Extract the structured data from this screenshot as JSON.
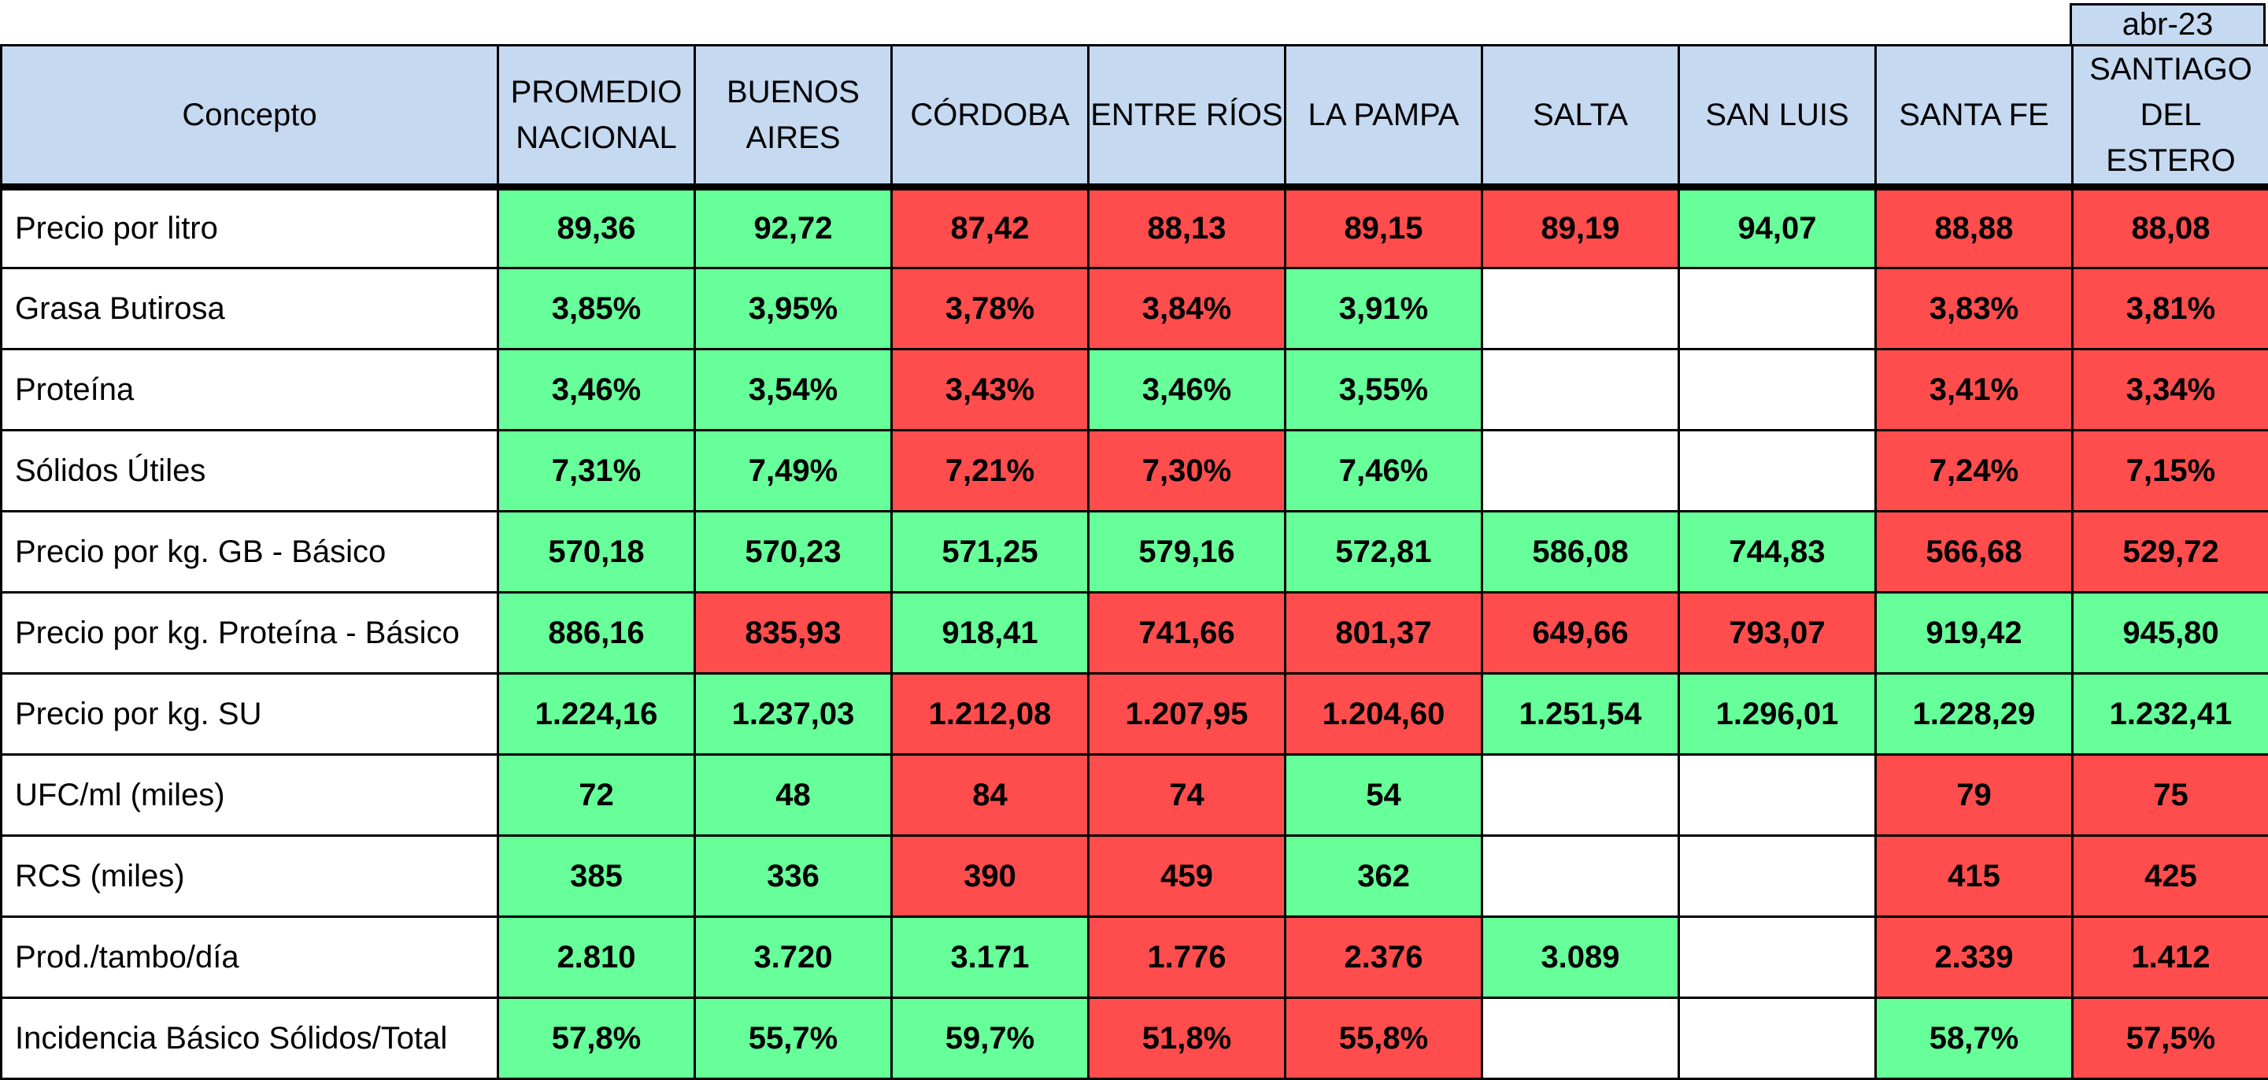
{
  "period": "abr-23",
  "colors": {
    "header": "#c5d9f1",
    "positive": "#66ff99",
    "negative": "#ff4d4d",
    "empty": "#ffffff"
  },
  "header": {
    "concept": "Concepto",
    "columns": [
      [
        "PROMEDIO",
        "NACIONAL"
      ],
      [
        "BUENOS",
        "AIRES"
      ],
      [
        "CÓRDOBA"
      ],
      [
        "ENTRE RÍOS"
      ],
      [
        "LA PAMPA"
      ],
      [
        "SALTA"
      ],
      [
        "SAN LUIS"
      ],
      [
        "SANTA FE"
      ],
      [
        "SANTIAGO",
        "DEL ESTERO"
      ]
    ]
  },
  "rows": [
    {
      "label": "Precio por litro",
      "values": [
        "89,36",
        "92,72",
        "87,42",
        "88,13",
        "89,15",
        "89,19",
        "94,07",
        "88,88",
        "88,08"
      ],
      "status": [
        "g",
        "g",
        "r",
        "r",
        "r",
        "r",
        "g",
        "r",
        "r"
      ]
    },
    {
      "label": "Grasa Butirosa",
      "values": [
        "3,85%",
        "3,95%",
        "3,78%",
        "3,84%",
        "3,91%",
        "",
        "",
        "3,83%",
        "3,81%"
      ],
      "status": [
        "g",
        "g",
        "r",
        "r",
        "g",
        "w",
        "w",
        "r",
        "r"
      ]
    },
    {
      "label": "Proteína",
      "values": [
        "3,46%",
        "3,54%",
        "3,43%",
        "3,46%",
        "3,55%",
        "",
        "",
        "3,41%",
        "3,34%"
      ],
      "status": [
        "g",
        "g",
        "r",
        "g",
        "g",
        "w",
        "w",
        "r",
        "r"
      ]
    },
    {
      "label": "Sólidos Útiles",
      "values": [
        "7,31%",
        "7,49%",
        "7,21%",
        "7,30%",
        "7,46%",
        "",
        "",
        "7,24%",
        "7,15%"
      ],
      "status": [
        "g",
        "g",
        "r",
        "r",
        "g",
        "w",
        "w",
        "r",
        "r"
      ]
    },
    {
      "label": "Precio por kg. GB - Básico",
      "values": [
        "570,18",
        "570,23",
        "571,25",
        "579,16",
        "572,81",
        "586,08",
        "744,83",
        "566,68",
        "529,72"
      ],
      "status": [
        "g",
        "g",
        "g",
        "g",
        "g",
        "g",
        "g",
        "r",
        "r"
      ]
    },
    {
      "label": "Precio por kg. Proteína - Básico",
      "values": [
        "886,16",
        "835,93",
        "918,41",
        "741,66",
        "801,37",
        "649,66",
        "793,07",
        "919,42",
        "945,80"
      ],
      "status": [
        "g",
        "r",
        "g",
        "r",
        "r",
        "r",
        "r",
        "g",
        "g"
      ]
    },
    {
      "label": "Precio por kg. SU",
      "values": [
        "1.224,16",
        "1.237,03",
        "1.212,08",
        "1.207,95",
        "1.204,60",
        "1.251,54",
        "1.296,01",
        "1.228,29",
        "1.232,41"
      ],
      "status": [
        "g",
        "g",
        "r",
        "r",
        "r",
        "g",
        "g",
        "g",
        "g"
      ]
    },
    {
      "label": "UFC/ml (miles)",
      "values": [
        "72",
        "48",
        "84",
        "74",
        "54",
        "",
        "",
        "79",
        "75"
      ],
      "status": [
        "g",
        "g",
        "r",
        "r",
        "g",
        "w",
        "w",
        "r",
        "r"
      ]
    },
    {
      "label": "RCS (miles)",
      "values": [
        "385",
        "336",
        "390",
        "459",
        "362",
        "",
        "",
        "415",
        "425"
      ],
      "status": [
        "g",
        "g",
        "r",
        "r",
        "g",
        "w",
        "w",
        "r",
        "r"
      ]
    },
    {
      "label": "Prod./tambo/día",
      "values": [
        "2.810",
        "3.720",
        "3.171",
        "1.776",
        "2.376",
        "3.089",
        "",
        "2.339",
        "1.412"
      ],
      "status": [
        "g",
        "g",
        "g",
        "r",
        "r",
        "g",
        "w",
        "r",
        "r"
      ]
    },
    {
      "label": "Incidencia Básico Sólidos/Total",
      "values": [
        "57,8%",
        "55,7%",
        "59,7%",
        "51,8%",
        "55,8%",
        "",
        "",
        "58,7%",
        "57,5%"
      ],
      "status": [
        "g",
        "g",
        "g",
        "r",
        "r",
        "w",
        "w",
        "g",
        "r"
      ]
    }
  ]
}
